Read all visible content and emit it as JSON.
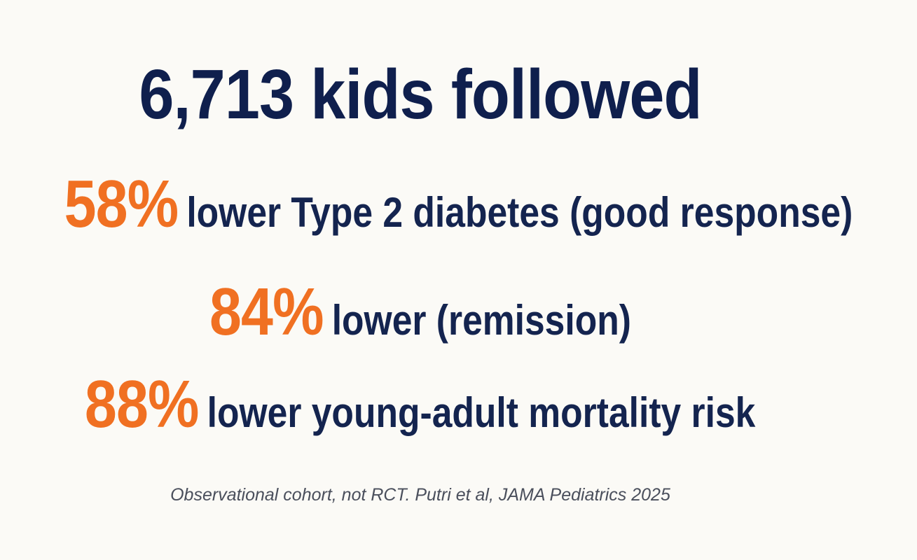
{
  "headline": "6,713 kids followed",
  "stats": [
    {
      "percent": "58%",
      "text": "lower Type 2 diabetes (good response)"
    },
    {
      "percent": "84%",
      "text": "lower (remission)"
    },
    {
      "percent": "88%",
      "text": "lower young-adult mortality risk"
    }
  ],
  "footnote": "Observational cohort, not RCT. Putri et al, JAMA Pediatrics 2025",
  "colors": {
    "background": "#fbfaf6",
    "headline": "#0f1f4d",
    "accent": "#f07022",
    "body_text": "#14244f",
    "footnote": "#4a4f5c"
  }
}
